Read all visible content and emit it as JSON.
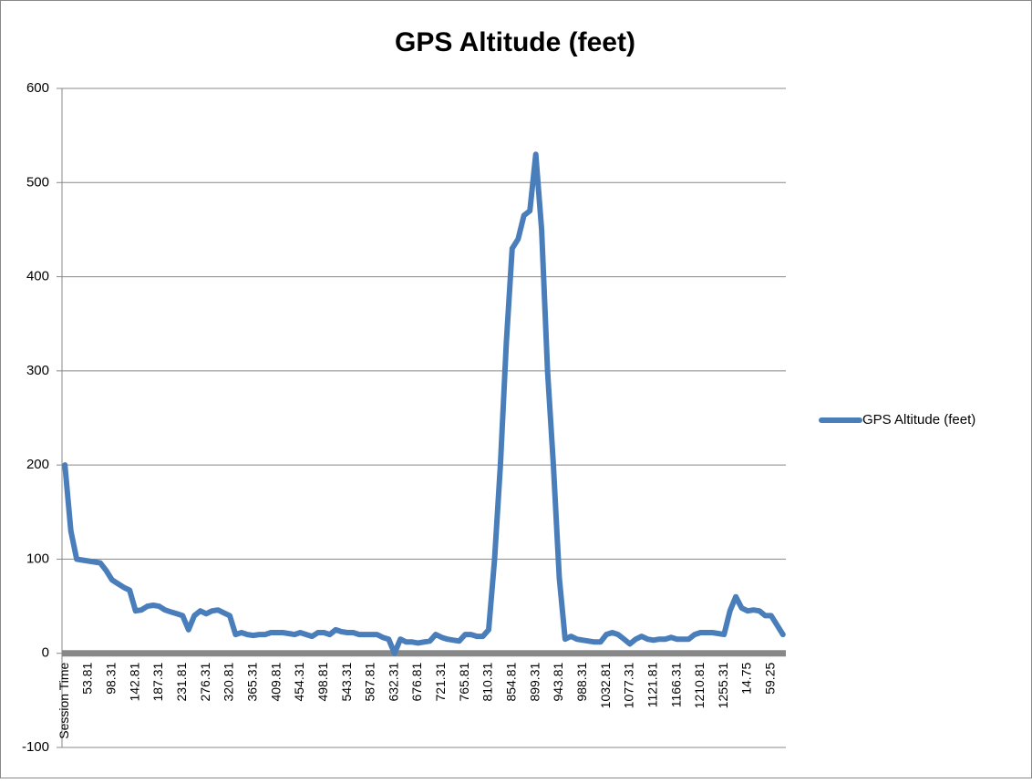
{
  "chart_data": {
    "type": "line",
    "title": "GPS Altitude (feet)",
    "categories": [
      "Session Time",
      null,
      null,
      null,
      "53.81",
      null,
      null,
      null,
      "98.31",
      null,
      null,
      null,
      "142.81",
      null,
      null,
      null,
      "187.31",
      null,
      null,
      null,
      "231.81",
      null,
      null,
      null,
      "276.31",
      null,
      null,
      null,
      "320.81",
      null,
      null,
      null,
      "365.31",
      null,
      null,
      null,
      "409.81",
      null,
      null,
      null,
      "454.31",
      null,
      null,
      null,
      "498.81",
      null,
      null,
      null,
      "543.31",
      null,
      null,
      null,
      "587.81",
      null,
      null,
      null,
      "632.31",
      null,
      null,
      null,
      "676.81",
      null,
      null,
      null,
      "721.31",
      null,
      null,
      null,
      "765.81",
      null,
      null,
      null,
      "810.31",
      null,
      null,
      null,
      "854.81",
      null,
      null,
      null,
      "899.31",
      null,
      null,
      null,
      "943.81",
      null,
      null,
      null,
      "988.31",
      null,
      null,
      null,
      "1032.81",
      null,
      null,
      null,
      "1077.31",
      null,
      null,
      null,
      "1121.81",
      null,
      null,
      null,
      "1166.31",
      null,
      null,
      null,
      "1210.81",
      null,
      null,
      null,
      "1255.31",
      null,
      null,
      null,
      "14.75",
      null,
      null,
      null,
      "59.25",
      null,
      null
    ],
    "series": [
      {
        "name": "GPS Altitude (feet)",
        "color": "#4a7ebb",
        "values": [
          200,
          130,
          100,
          99,
          98,
          97,
          96,
          88,
          78,
          74,
          70,
          67,
          45,
          46,
          50,
          51,
          50,
          46,
          44,
          42,
          40,
          25,
          40,
          45,
          42,
          45,
          46,
          43,
          40,
          20,
          22,
          20,
          19,
          20,
          20,
          22,
          22,
          22,
          21,
          20,
          22,
          20,
          18,
          22,
          22,
          20,
          25,
          23,
          22,
          22,
          20,
          20,
          20,
          20,
          17,
          15,
          0,
          15,
          12,
          12,
          11,
          12,
          13,
          20,
          17,
          15,
          14,
          13,
          20,
          20,
          18,
          18,
          25,
          100,
          200,
          330,
          430,
          440,
          465,
          470,
          530,
          450,
          300,
          200,
          80,
          15,
          18,
          15,
          14,
          13,
          12,
          12,
          20,
          22,
          20,
          15,
          10,
          15,
          18,
          15,
          14,
          15,
          15,
          17,
          15,
          15,
          15,
          20,
          22,
          22,
          22,
          21,
          20,
          45,
          60,
          48,
          45,
          46,
          45,
          40,
          40,
          30,
          20
        ]
      }
    ],
    "ylim": [
      -100,
      600
    ],
    "yticks": [
      -100,
      0,
      100,
      200,
      300,
      400,
      500,
      600
    ],
    "grid": true,
    "legend": "right"
  }
}
